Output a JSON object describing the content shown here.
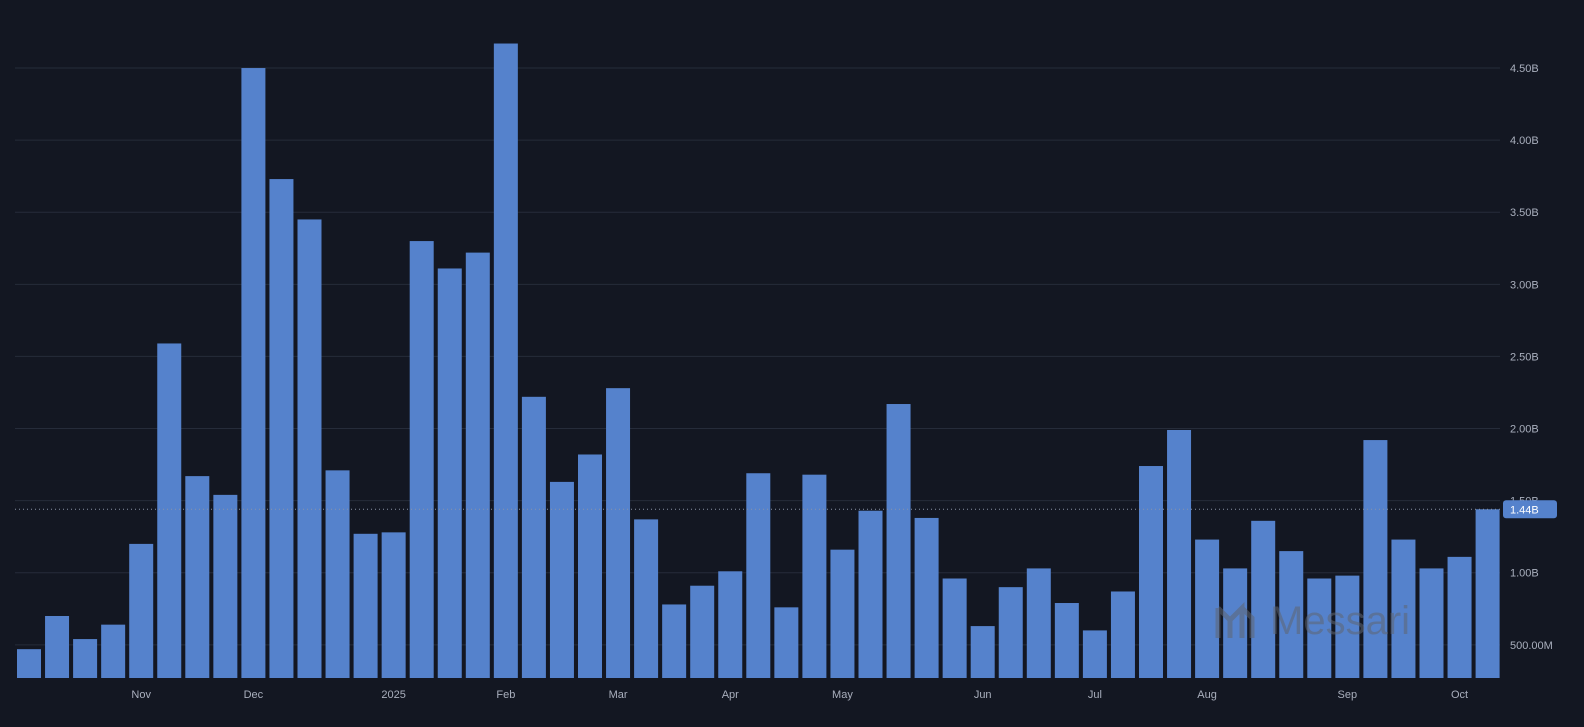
{
  "colors": {
    "background": "#131722",
    "bar": "#5582cc",
    "grid": "#262c3a",
    "axis_text": "#a9afbd",
    "badge_bg": "#5582cc",
    "badge_text": "#ffffff",
    "watermark": "#5f6673"
  },
  "watermark": {
    "text": "Messari",
    "icon": "messari-logo-icon"
  },
  "chart_data": {
    "type": "bar",
    "title": "",
    "xlabel": "",
    "ylabel": "",
    "y_axis_side": "right",
    "ylim": [
      0.27,
      4.88
    ],
    "y_unit": "B",
    "grid": "horizontal",
    "y_ticks": [
      {
        "value": 0.5,
        "label": "500.00M"
      },
      {
        "value": 1.0,
        "label": "1.00B"
      },
      {
        "value": 1.5,
        "label": "1.50B"
      },
      {
        "value": 2.0,
        "label": "2.00B"
      },
      {
        "value": 2.5,
        "label": "2.50B"
      },
      {
        "value": 3.0,
        "label": "3.00B"
      },
      {
        "value": 3.5,
        "label": "3.50B"
      },
      {
        "value": 4.0,
        "label": "4.00B"
      },
      {
        "value": 4.5,
        "label": "4.50B"
      }
    ],
    "x_ticks": [
      {
        "bar_index": 4,
        "label": "Nov"
      },
      {
        "bar_index": 8,
        "label": "Dec"
      },
      {
        "bar_index": 13,
        "label": "2025"
      },
      {
        "bar_index": 17,
        "label": "Feb"
      },
      {
        "bar_index": 21,
        "label": "Mar"
      },
      {
        "bar_index": 25,
        "label": "Apr"
      },
      {
        "bar_index": 29,
        "label": "May"
      },
      {
        "bar_index": 34,
        "label": "Jun"
      },
      {
        "bar_index": 38,
        "label": "Jul"
      },
      {
        "bar_index": 42,
        "label": "Aug"
      },
      {
        "bar_index": 47,
        "label": "Sep"
      },
      {
        "bar_index": 51,
        "label": "Oct"
      }
    ],
    "values": [
      0.47,
      0.7,
      0.54,
      0.64,
      1.2,
      2.59,
      1.67,
      1.54,
      4.5,
      3.73,
      3.45,
      1.71,
      1.27,
      1.28,
      3.3,
      3.11,
      3.22,
      4.67,
      2.22,
      1.63,
      1.82,
      2.28,
      1.37,
      0.78,
      0.91,
      1.01,
      1.69,
      0.76,
      1.68,
      1.16,
      1.43,
      2.17,
      1.38,
      0.96,
      0.63,
      0.9,
      1.03,
      0.79,
      0.6,
      0.87,
      1.74,
      1.99,
      1.23,
      1.03,
      1.36,
      1.15,
      0.96,
      0.98,
      1.92,
      1.23,
      1.03,
      1.11,
      1.44
    ],
    "current_value": {
      "value": 1.44,
      "label": "1.44B"
    }
  }
}
